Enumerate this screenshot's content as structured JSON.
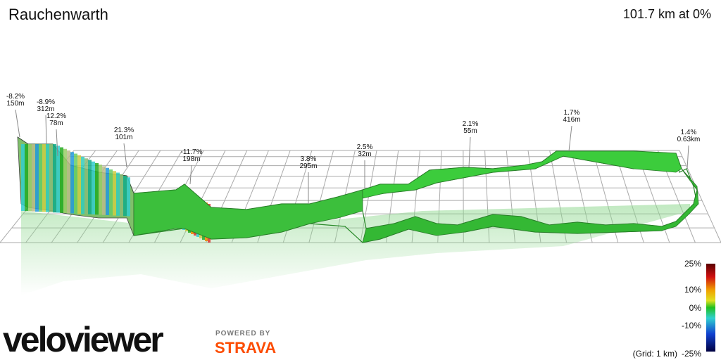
{
  "header": {
    "title": "Rauchenwarth",
    "summary": "101.7 km at 0%"
  },
  "annotations": [
    {
      "grade": "-8.2%",
      "length": "150m"
    },
    {
      "grade": "-8.9%",
      "length": "312m"
    },
    {
      "grade": "12.2%",
      "length": "78m"
    },
    {
      "grade": "21.3%",
      "length": "101m"
    },
    {
      "grade": "-11.7%",
      "length": "198m"
    },
    {
      "grade": "3.8%",
      "length": "295m"
    },
    {
      "grade": "2.5%",
      "length": "32m"
    },
    {
      "grade": "2.1%",
      "length": "55m"
    },
    {
      "grade": "1.7%",
      "length": "416m"
    },
    {
      "grade": "1.4%",
      "length": "0.63km"
    }
  ],
  "legend": {
    "labels": [
      "25%",
      "10%",
      "0%",
      "-10%",
      "-25%"
    ],
    "grid_note": "(Grid: 1 km)"
  },
  "branding": {
    "logo": "veloviewer",
    "powered_by": "POWERED BY",
    "partner": "STRAVA"
  }
}
